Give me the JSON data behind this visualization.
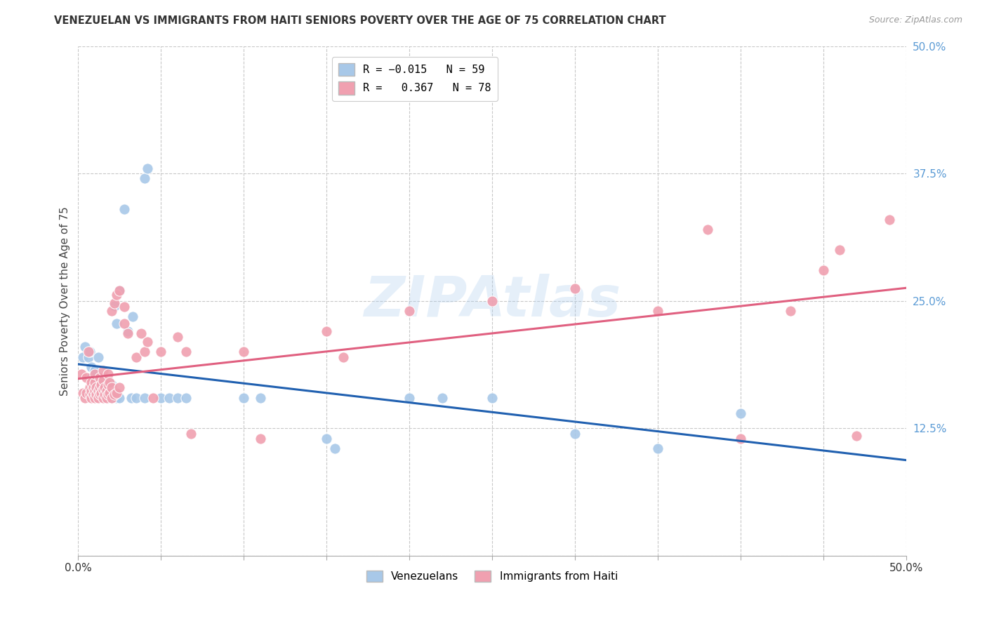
{
  "title": "VENEZUELAN VS IMMIGRANTS FROM HAITI SENIORS POVERTY OVER THE AGE OF 75 CORRELATION CHART",
  "source": "Source: ZipAtlas.com",
  "ylabel": "Seniors Poverty Over the Age of 75",
  "xlim": [
    0,
    0.5
  ],
  "ylim": [
    0,
    0.5
  ],
  "xticks": [
    0.0,
    0.05,
    0.1,
    0.15,
    0.2,
    0.25,
    0.3,
    0.35,
    0.4,
    0.45,
    0.5
  ],
  "ytick_vals_right": [
    0.5,
    0.375,
    0.25,
    0.125
  ],
  "ytick_labels_right": [
    "50.0%",
    "37.5%",
    "25.0%",
    "12.5%"
  ],
  "venezuelan_color": "#a8c8e8",
  "haitian_color": "#f0a0b0",
  "venezuelan_line_color": "#2060b0",
  "haitian_line_color": "#e06080",
  "background_color": "#ffffff",
  "grid_color": "#c8c8c8",
  "venezuelan_data": [
    [
      0.003,
      0.195
    ],
    [
      0.004,
      0.205
    ],
    [
      0.006,
      0.195
    ],
    [
      0.007,
      0.2
    ],
    [
      0.008,
      0.175
    ],
    [
      0.008,
      0.185
    ],
    [
      0.009,
      0.17
    ],
    [
      0.01,
      0.165
    ],
    [
      0.01,
      0.175
    ],
    [
      0.01,
      0.182
    ],
    [
      0.011,
      0.17
    ],
    [
      0.012,
      0.165
    ],
    [
      0.012,
      0.195
    ],
    [
      0.013,
      0.163
    ],
    [
      0.013,
      0.168
    ],
    [
      0.013,
      0.175
    ],
    [
      0.014,
      0.16
    ],
    [
      0.014,
      0.165
    ],
    [
      0.015,
      0.158
    ],
    [
      0.015,
      0.163
    ],
    [
      0.015,
      0.17
    ],
    [
      0.016,
      0.16
    ],
    [
      0.016,
      0.165
    ],
    [
      0.017,
      0.158
    ],
    [
      0.017,
      0.162
    ],
    [
      0.018,
      0.155
    ],
    [
      0.018,
      0.16
    ],
    [
      0.019,
      0.158
    ],
    [
      0.019,
      0.163
    ],
    [
      0.02,
      0.155
    ],
    [
      0.02,
      0.16
    ],
    [
      0.02,
      0.168
    ],
    [
      0.022,
      0.16
    ],
    [
      0.022,
      0.245
    ],
    [
      0.023,
      0.155
    ],
    [
      0.023,
      0.228
    ],
    [
      0.025,
      0.155
    ],
    [
      0.025,
      0.26
    ],
    [
      0.028,
      0.34
    ],
    [
      0.03,
      0.22
    ],
    [
      0.032,
      0.155
    ],
    [
      0.033,
      0.235
    ],
    [
      0.035,
      0.155
    ],
    [
      0.04,
      0.155
    ],
    [
      0.04,
      0.37
    ],
    [
      0.042,
      0.38
    ],
    [
      0.05,
      0.155
    ],
    [
      0.055,
      0.155
    ],
    [
      0.06,
      0.155
    ],
    [
      0.065,
      0.155
    ],
    [
      0.1,
      0.155
    ],
    [
      0.11,
      0.155
    ],
    [
      0.15,
      0.115
    ],
    [
      0.155,
      0.105
    ],
    [
      0.2,
      0.155
    ],
    [
      0.22,
      0.155
    ],
    [
      0.25,
      0.155
    ],
    [
      0.3,
      0.12
    ],
    [
      0.35,
      0.105
    ],
    [
      0.4,
      0.14
    ]
  ],
  "haitian_data": [
    [
      0.002,
      0.178
    ],
    [
      0.003,
      0.16
    ],
    [
      0.004,
      0.155
    ],
    [
      0.005,
      0.16
    ],
    [
      0.005,
      0.175
    ],
    [
      0.006,
      0.2
    ],
    [
      0.007,
      0.158
    ],
    [
      0.007,
      0.165
    ],
    [
      0.008,
      0.155
    ],
    [
      0.008,
      0.162
    ],
    [
      0.008,
      0.17
    ],
    [
      0.009,
      0.158
    ],
    [
      0.009,
      0.165
    ],
    [
      0.01,
      0.155
    ],
    [
      0.01,
      0.162
    ],
    [
      0.01,
      0.17
    ],
    [
      0.01,
      0.178
    ],
    [
      0.011,
      0.158
    ],
    [
      0.011,
      0.165
    ],
    [
      0.012,
      0.155
    ],
    [
      0.012,
      0.162
    ],
    [
      0.013,
      0.158
    ],
    [
      0.013,
      0.165
    ],
    [
      0.013,
      0.175
    ],
    [
      0.014,
      0.16
    ],
    [
      0.014,
      0.168
    ],
    [
      0.015,
      0.155
    ],
    [
      0.015,
      0.163
    ],
    [
      0.015,
      0.172
    ],
    [
      0.015,
      0.182
    ],
    [
      0.016,
      0.158
    ],
    [
      0.016,
      0.165
    ],
    [
      0.017,
      0.155
    ],
    [
      0.017,
      0.162
    ],
    [
      0.018,
      0.158
    ],
    [
      0.018,
      0.168
    ],
    [
      0.018,
      0.178
    ],
    [
      0.019,
      0.16
    ],
    [
      0.019,
      0.17
    ],
    [
      0.02,
      0.155
    ],
    [
      0.02,
      0.165
    ],
    [
      0.02,
      0.24
    ],
    [
      0.022,
      0.158
    ],
    [
      0.022,
      0.248
    ],
    [
      0.023,
      0.16
    ],
    [
      0.023,
      0.256
    ],
    [
      0.025,
      0.165
    ],
    [
      0.025,
      0.26
    ],
    [
      0.028,
      0.228
    ],
    [
      0.028,
      0.244
    ],
    [
      0.03,
      0.218
    ],
    [
      0.035,
      0.195
    ],
    [
      0.038,
      0.218
    ],
    [
      0.04,
      0.2
    ],
    [
      0.042,
      0.21
    ],
    [
      0.045,
      0.155
    ],
    [
      0.05,
      0.2
    ],
    [
      0.06,
      0.215
    ],
    [
      0.065,
      0.2
    ],
    [
      0.068,
      0.12
    ],
    [
      0.1,
      0.2
    ],
    [
      0.11,
      0.115
    ],
    [
      0.15,
      0.22
    ],
    [
      0.16,
      0.195
    ],
    [
      0.2,
      0.24
    ],
    [
      0.25,
      0.25
    ],
    [
      0.3,
      0.262
    ],
    [
      0.35,
      0.24
    ],
    [
      0.38,
      0.32
    ],
    [
      0.4,
      0.115
    ],
    [
      0.43,
      0.24
    ],
    [
      0.45,
      0.28
    ],
    [
      0.46,
      0.3
    ],
    [
      0.47,
      0.118
    ],
    [
      0.49,
      0.33
    ]
  ]
}
